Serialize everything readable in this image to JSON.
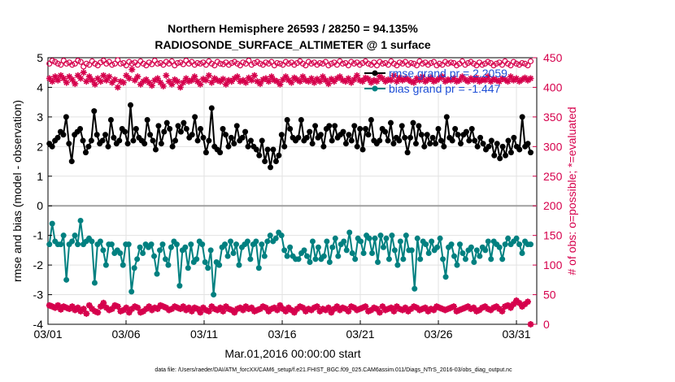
{
  "chart_data": {
    "type": "line",
    "title": "Northern Hemisphere 26593 / 28250 = 94.135%",
    "subtitle": "RADIOSONDE_SURFACE_ALTIMETER @ 1 surface",
    "xlabel": "Mar.01,2016 00:00:00 start",
    "ylabel_left": "rmse and bias (model - observation)",
    "ylabel_right": "# of obs: o=possible; *=evaluated",
    "footer": "data file: /Users/raeder/DAI/ATM_forcXX/CAM6_setup/f.e21.FHIST_BGC.f09_025.CAM6assim.011/Diags_NTrS_2016-03/obs_diag_output.nc",
    "xlim": [
      0,
      31.3
    ],
    "ylim_left": [
      -4,
      5
    ],
    "ylim_right": [
      0,
      450
    ],
    "x_tick_labels": [
      "03/01",
      "03/06",
      "03/11",
      "03/16",
      "03/21",
      "03/26",
      "03/31"
    ],
    "x_tick_values": [
      0,
      5,
      10,
      15,
      20,
      25,
      30
    ],
    "y_left_ticks": [
      -4,
      -3,
      -2,
      -1,
      0,
      1,
      2,
      3,
      4,
      5
    ],
    "y_right_ticks": [
      0,
      50,
      100,
      150,
      200,
      250,
      300,
      350,
      400,
      450
    ],
    "grid": true,
    "legend_position": "top-right",
    "colors": {
      "rmse": "#000000",
      "bias": "#008080",
      "obs": "#d6004c",
      "zero_line": "#a0a0a0",
      "legend_text": "#1e4fd6"
    },
    "series": [
      {
        "name": "rmse grand pr = 2.2059",
        "axis": "left",
        "marker": "filled-circle",
        "values": [
          2.1,
          2.0,
          2.2,
          2.3,
          2.5,
          2.4,
          3.0,
          2.1,
          1.5,
          2.4,
          2.5,
          2.6,
          2.2,
          1.8,
          2.0,
          2.2,
          3.2,
          2.4,
          2.1,
          2.2,
          2.4,
          2.0,
          2.9,
          2.3,
          2.1,
          2.2,
          2.6,
          2.5,
          2.1,
          3.4,
          2.2,
          2.6,
          2.3,
          2.2,
          2.1,
          2.9,
          2.4,
          2.2,
          1.9,
          2.7,
          2.1,
          2.5,
          2.8,
          2.6,
          2.0,
          2.2,
          2.7,
          2.5,
          2.8,
          2.6,
          2.3,
          2.4,
          3.0,
          2.2,
          2.6,
          2.3,
          1.8,
          2.2,
          3.3,
          2.0,
          1.9,
          1.8,
          2.6,
          2.4,
          2.0,
          2.3,
          2.1,
          2.7,
          2.2,
          2.3,
          2.5,
          2.0,
          2.2,
          2.0,
          1.9,
          1.7,
          2.2,
          1.5,
          1.9,
          1.3,
          1.9,
          1.5,
          1.7,
          2.4,
          2.0,
          2.9,
          2.6,
          2.3,
          2.2,
          2.3,
          2.9,
          2.2,
          2.3,
          2.5,
          2.1,
          2.7,
          2.3,
          2.4,
          2.0,
          2.6,
          2.7,
          2.2,
          2.7,
          2.3,
          2.4,
          2.5,
          2.1,
          2.4,
          2.2,
          2.7,
          2.0,
          2.6,
          1.9,
          2.6,
          2.4,
          2.9,
          2.2,
          2.1,
          2.2,
          2.6,
          2.5,
          2.2,
          2.8,
          2.1,
          2.3,
          2.2,
          2.7,
          2.3,
          1.8,
          2.3,
          2.8,
          2.1,
          2.7,
          2.4,
          2.0,
          2.4,
          2.1,
          2.3,
          2.1,
          2.6,
          2.2,
          2.0,
          3.0,
          2.3,
          2.2,
          2.6,
          2.4,
          2.1,
          2.4,
          2.5,
          2.2,
          2.6,
          2.2,
          2.0,
          2.3,
          2.1,
          1.9,
          2.0,
          2.2,
          1.7,
          2.1,
          1.6,
          2.0,
          1.7,
          2.2,
          1.8,
          2.3,
          2.0,
          1.9,
          3.0,
          2.0,
          2.1,
          1.8
        ]
      },
      {
        "name": "bias grand pr = -1.447",
        "axis": "left",
        "marker": "filled-circle",
        "values": [
          -1.3,
          -0.6,
          -1.2,
          -1.3,
          -1.3,
          -1.0,
          -2.5,
          -1.3,
          -1.2,
          -1.0,
          -1.3,
          -0.5,
          -1.3,
          -1.2,
          -1.1,
          -1.2,
          -2.6,
          -1.3,
          -1.2,
          -1.5,
          -2.0,
          -1.3,
          -1.3,
          -1.6,
          -1.5,
          -1.6,
          -2.0,
          -1.3,
          -1.3,
          -2.9,
          -2.1,
          -1.8,
          -1.4,
          -1.6,
          -1.3,
          -1.4,
          -1.3,
          -1.7,
          -2.3,
          -1.5,
          -1.3,
          -1.8,
          -2.0,
          -1.4,
          -1.2,
          -1.3,
          -2.7,
          -1.5,
          -1.4,
          -2.1,
          -1.3,
          -1.9,
          -1.8,
          -1.2,
          -1.3,
          -1.9,
          -2.1,
          -1.5,
          -3.0,
          -1.9,
          -2.0,
          -1.4,
          -1.3,
          -1.7,
          -1.2,
          -1.6,
          -1.3,
          -2.0,
          -1.4,
          -1.3,
          -1.2,
          -1.8,
          -1.3,
          -1.2,
          -2.1,
          -1.3,
          -1.7,
          -1.2,
          -1.0,
          -1.2,
          -1.1,
          -0.9,
          -1.0,
          -1.5,
          -1.7,
          -1.4,
          -1.7,
          -1.8,
          -1.8,
          -1.6,
          -1.5,
          -1.7,
          -1.9,
          -1.2,
          -1.8,
          -1.4,
          -1.8,
          -1.7,
          -1.2,
          -1.9,
          -1.4,
          -1.1,
          -1.7,
          -1.3,
          -1.2,
          -1.5,
          -0.9,
          -1.6,
          -1.8,
          -1.1,
          -1.2,
          -1.6,
          -1.0,
          -1.1,
          -1.6,
          -1.1,
          -1.9,
          -1.0,
          -1.4,
          -1.1,
          -1.8,
          -1.0,
          -1.5,
          -2.0,
          -1.2,
          -1.8,
          -1.0,
          -1.5,
          -1.5,
          -2.8,
          -1.1,
          -1.8,
          -1.2,
          -1.3,
          -1.6,
          -1.2,
          -1.5,
          -1.4,
          -1.1,
          -1.8,
          -2.4,
          -1.4,
          -1.3,
          -1.7,
          -2.0,
          -1.3,
          -1.6,
          -1.8,
          -1.5,
          -1.4,
          -1.9,
          -1.5,
          -1.7,
          -1.4,
          -1.5,
          -1.2,
          -1.8,
          -1.2,
          -1.3,
          -1.4,
          -1.8,
          -1.3,
          -1.1,
          -1.3,
          -1.2,
          -1.1,
          -1.3,
          -1.6,
          -1.2,
          -1.3,
          -1.3
        ]
      },
      {
        "name": "possible",
        "axis": "right",
        "marker": "open-circle",
        "values": [
          440,
          445,
          443,
          440,
          438,
          445,
          440,
          442,
          438,
          440,
          445,
          443,
          435,
          440,
          438,
          444,
          440,
          437,
          442,
          445,
          440,
          443,
          438,
          440,
          446,
          440,
          441,
          437,
          443,
          440,
          442,
          438,
          444,
          440,
          437,
          442,
          439,
          445,
          440,
          441,
          438,
          443,
          440,
          444,
          437,
          441,
          442,
          439,
          445,
          440,
          443,
          438,
          441,
          440,
          442,
          438,
          444,
          440,
          437,
          443,
          440,
          439,
          442,
          438,
          441,
          443,
          440,
          437,
          442,
          440,
          445,
          438,
          441,
          443,
          440,
          438,
          442,
          440,
          443,
          437,
          441,
          440,
          438,
          443,
          440,
          442,
          438,
          441,
          444,
          440,
          437,
          443,
          440,
          442,
          438,
          441,
          440,
          443,
          437,
          440,
          442,
          438,
          444,
          440,
          441,
          437,
          443,
          440,
          442,
          438,
          441,
          444,
          440,
          438,
          442,
          437,
          443,
          440,
          441,
          438,
          444,
          440,
          437,
          442,
          440,
          443,
          438,
          441,
          440,
          437,
          444,
          440,
          442,
          438,
          441,
          443,
          437,
          440,
          438,
          443,
          440,
          442,
          441,
          437,
          440,
          444,
          438,
          441,
          443,
          440,
          437,
          442,
          438,
          440,
          443,
          441,
          437,
          440,
          442,
          438,
          444,
          440,
          437,
          443,
          440,
          438,
          441,
          440,
          437,
          444
        ]
      },
      {
        "name": "evaluated",
        "axis": "right",
        "marker": "asterisk",
        "values": [
          415,
          410,
          418,
          412,
          420,
          415,
          408,
          418,
          413,
          406,
          420,
          415,
          425,
          410,
          418,
          412,
          405,
          415,
          410,
          420,
          412,
          418,
          408,
          413,
          400,
          410,
          408,
          420,
          415,
          430,
          412,
          418,
          405,
          410,
          413,
          408,
          403,
          412,
          415,
          408,
          402,
          420,
          410,
          405,
          413,
          410,
          400,
          408,
          415,
          410,
          412,
          418,
          410,
          405,
          414,
          412,
          420,
          408,
          415,
          412,
          410,
          414,
          405,
          412,
          410,
          415,
          418,
          410,
          412,
          408,
          416,
          412,
          420,
          410,
          406,
          413,
          415,
          410,
          418,
          412,
          410,
          405,
          413,
          418,
          412,
          408,
          416,
          413,
          410,
          418,
          412,
          410,
          415,
          408,
          414,
          410,
          418,
          412,
          406,
          414,
          410,
          415,
          418,
          412,
          410,
          415,
          408,
          413,
          420,
          412,
          410,
          416,
          414,
          408,
          412,
          410,
          418,
          415,
          410,
          413,
          412,
          420,
          410,
          416,
          412,
          415,
          413,
          410,
          408,
          415,
          412,
          418,
          410,
          413,
          416,
          410,
          412,
          415,
          418,
          410,
          413,
          412,
          415,
          410,
          412,
          418,
          413,
          410,
          415,
          412,
          416,
          410,
          413,
          412,
          418,
          410,
          414,
          412,
          410,
          415,
          413,
          410,
          418,
          412,
          415,
          410,
          413,
          416,
          412,
          415
        ]
      },
      {
        "name": "possible (bottom)",
        "axis": "right",
        "marker": "open-circle",
        "values": [
          32,
          30,
          28,
          32,
          25,
          30,
          28,
          26,
          30,
          24,
          28,
          22,
          26,
          18,
          32,
          26,
          22,
          20,
          30,
          36,
          28,
          24,
          26,
          32,
          30,
          22,
          24,
          28,
          20,
          26,
          30,
          28,
          20,
          22,
          26,
          30,
          24,
          28,
          26,
          32,
          30,
          28,
          24,
          26,
          30,
          28,
          26,
          30,
          24,
          28,
          22,
          28,
          26,
          20,
          28,
          24,
          22,
          30,
          26,
          24,
          28,
          22,
          30,
          26,
          24,
          20,
          26,
          28,
          24,
          30,
          26,
          28,
          22,
          24,
          26,
          30,
          28,
          22,
          26,
          28,
          24,
          32,
          26,
          22,
          28,
          24,
          20,
          26,
          30,
          28,
          22,
          26,
          24,
          28,
          30,
          22,
          26,
          24,
          28,
          20,
          26,
          30,
          24,
          28,
          26,
          22,
          30,
          28,
          24,
          26,
          28,
          30,
          22,
          24,
          28,
          26,
          20,
          30,
          24,
          26,
          28,
          22,
          30,
          26,
          24,
          28,
          22,
          26,
          30,
          28,
          24,
          26,
          28,
          22,
          26,
          24,
          30,
          28,
          26,
          24,
          26,
          28,
          30,
          22,
          24,
          26,
          28,
          30,
          26,
          28,
          22,
          24,
          28,
          30,
          26,
          24,
          28,
          30,
          26,
          22,
          30,
          32,
          28,
          34,
          40,
          36,
          30,
          34,
          38,
          0
        ]
      },
      {
        "name": "evaluated (bottom)",
        "axis": "right",
        "marker": "asterisk",
        "values": [
          32,
          30,
          28,
          32,
          25,
          30,
          28,
          26,
          30,
          24,
          28,
          22,
          26,
          18,
          32,
          26,
          22,
          20,
          30,
          36,
          28,
          24,
          26,
          32,
          30,
          22,
          24,
          28,
          20,
          26,
          30,
          28,
          20,
          22,
          26,
          30,
          24,
          28,
          26,
          32,
          30,
          28,
          24,
          26,
          30,
          28,
          26,
          30,
          24,
          28,
          22,
          28,
          26,
          20,
          28,
          24,
          22,
          30,
          26,
          24,
          28,
          22,
          30,
          26,
          24,
          20,
          26,
          28,
          24,
          30,
          26,
          28,
          22,
          24,
          26,
          30,
          28,
          22,
          26,
          28,
          24,
          32,
          26,
          22,
          28,
          24,
          20,
          26,
          30,
          28,
          22,
          26,
          24,
          28,
          30,
          22,
          26,
          24,
          28,
          20,
          26,
          30,
          24,
          28,
          26,
          22,
          30,
          28,
          24,
          26,
          28,
          30,
          22,
          24,
          28,
          26,
          20,
          30,
          24,
          26,
          28,
          22,
          30,
          26,
          24,
          28,
          22,
          26,
          30,
          28,
          24,
          26,
          28,
          22,
          26,
          24,
          30,
          28,
          26,
          24,
          26,
          28,
          30,
          22,
          24,
          26,
          28,
          30,
          26,
          28,
          22,
          24,
          28,
          30,
          26,
          24,
          28,
          30,
          26,
          22,
          30,
          32,
          28,
          34,
          40,
          36,
          30,
          34,
          38,
          0
        ]
      }
    ]
  }
}
